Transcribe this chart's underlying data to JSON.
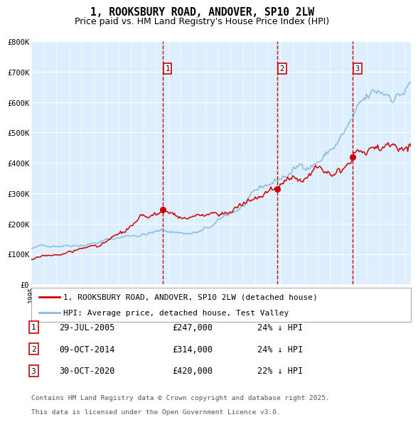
{
  "title": "1, ROOKSBURY ROAD, ANDOVER, SP10 2LW",
  "subtitle": "Price paid vs. HM Land Registry's House Price Index (HPI)",
  "background_color": "#ffffff",
  "plot_bg_color": "#ddeeff",
  "ylim": [
    0,
    800000
  ],
  "yticks": [
    0,
    100000,
    200000,
    300000,
    400000,
    500000,
    600000,
    700000,
    800000
  ],
  "ytick_labels": [
    "£0",
    "£100K",
    "£200K",
    "£300K",
    "£400K",
    "£500K",
    "£600K",
    "£700K",
    "£800K"
  ],
  "xlim_start": 1995.0,
  "xlim_end": 2025.5,
  "xticks": [
    1995,
    1996,
    1997,
    1998,
    1999,
    2000,
    2001,
    2002,
    2003,
    2004,
    2005,
    2006,
    2007,
    2008,
    2009,
    2010,
    2011,
    2012,
    2013,
    2014,
    2015,
    2016,
    2017,
    2018,
    2019,
    2020,
    2021,
    2022,
    2023,
    2024,
    2025
  ],
  "red_line_color": "#cc0000",
  "blue_line_color": "#88bbdd",
  "vline1_x": 2005.57,
  "vline2_x": 2014.77,
  "vline3_x": 2020.83,
  "vline_color": "#cc0000",
  "vline1_style": "--",
  "vline23_style": "--",
  "sale1_date": "29-JUL-2005",
  "sale1_price": 247000,
  "sale1_pct": "24%",
  "sale1_label": "1",
  "sale2_date": "09-OCT-2014",
  "sale2_price": 314000,
  "sale2_pct": "24%",
  "sale2_label": "2",
  "sale3_date": "30-OCT-2020",
  "sale3_price": 420000,
  "sale3_pct": "22%",
  "sale3_label": "3",
  "legend_line1": "1, ROOKSBURY ROAD, ANDOVER, SP10 2LW (detached house)",
  "legend_line2": "HPI: Average price, detached house, Test Valley",
  "footnote_line1": "Contains HM Land Registry data © Crown copyright and database right 2025.",
  "footnote_line2": "This data is licensed under the Open Government Licence v3.0.",
  "title_fontsize": 10.5,
  "subtitle_fontsize": 9,
  "tick_fontsize": 7.5,
  "legend_fontsize": 8,
  "footnote_fontsize": 6.8,
  "table_fontsize": 8.5
}
